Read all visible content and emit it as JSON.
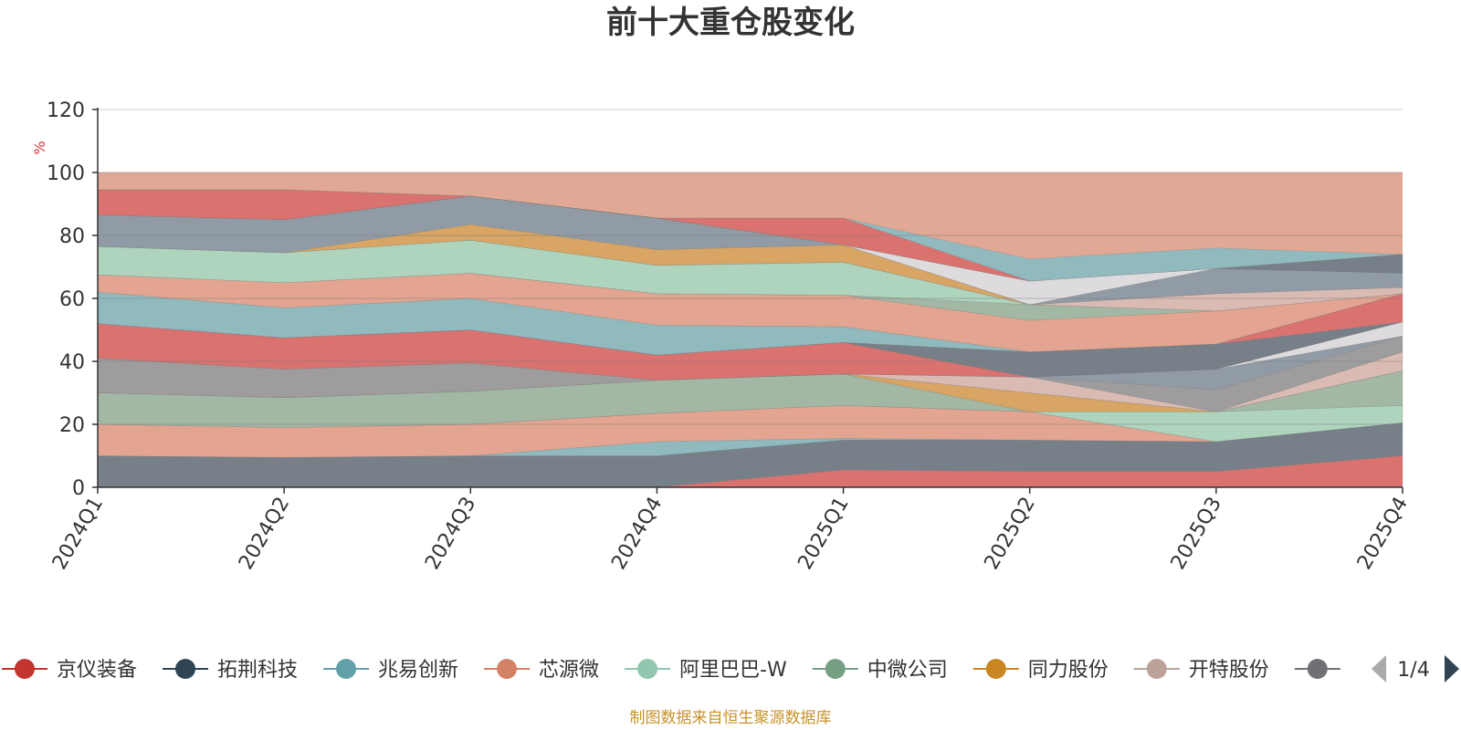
{
  "chart_data": {
    "type": "area",
    "title": "前十大重仓股变化",
    "ylabel": "%",
    "ylim": [
      0,
      120
    ],
    "y_ticks": [
      0,
      20,
      40,
      60,
      80,
      100,
      120
    ],
    "categories": [
      "2024Q1",
      "2024Q2",
      "2024Q3",
      "2024Q4",
      "2025Q1",
      "2025Q2",
      "2025Q3",
      "2025Q4"
    ],
    "background_band": {
      "from": 0,
      "to": 100,
      "color": "#e0a895"
    },
    "bands": [
      {
        "color": "#6e7c87",
        "lower": [
          0,
          0,
          0,
          0,
          5.5,
          5,
          5,
          10
        ],
        "upper": [
          10,
          9.5,
          10,
          10,
          15.5,
          15,
          14.5,
          20.5
        ]
      },
      {
        "color": "#d96e6c",
        "lower": [
          0,
          0,
          0,
          0,
          0,
          0,
          0,
          0
        ],
        "upper": [
          0,
          0,
          0,
          0,
          5.5,
          5,
          5,
          10
        ]
      },
      {
        "color": "#8abcc2",
        "lower": [
          10,
          9.5,
          10,
          10,
          15,
          15,
          14.5,
          20.5
        ],
        "upper": [
          10,
          9.5,
          10,
          14.5,
          15.5,
          15,
          14.5,
          20.5
        ]
      },
      {
        "color": "#e3a590",
        "lower": [
          10,
          9.5,
          10,
          14.5,
          15.5,
          15,
          14.5,
          20.5
        ],
        "upper": [
          20,
          19,
          20,
          23.5,
          26,
          24,
          14.5,
          20.5
        ]
      },
      {
        "color": "#a9d8c0",
        "lower": [
          20,
          19,
          20,
          23.5,
          26,
          24,
          14.5,
          20.5
        ],
        "upper": [
          20,
          19,
          20,
          23.5,
          26,
          24,
          24,
          26
        ]
      },
      {
        "color": "#9dbaa5",
        "lower": [
          20,
          19,
          20,
          23.5,
          26,
          24,
          24,
          26
        ],
        "upper": [
          30,
          28.5,
          30.5,
          34,
          36,
          24,
          24,
          37
        ]
      },
      {
        "color": "#d7a55f",
        "lower": [
          30,
          28.5,
          30.5,
          34,
          36,
          24,
          24,
          37
        ],
        "upper": [
          30,
          28.5,
          30.5,
          34,
          36,
          30,
          24,
          37
        ]
      },
      {
        "color": "#d8bdb6",
        "lower": [
          30,
          28.5,
          30.5,
          34,
          36,
          30,
          24,
          37
        ],
        "upper": [
          30,
          28.5,
          30.5,
          34,
          36,
          35,
          24,
          43
        ]
      },
      {
        "color": "#999b9e",
        "lower": [
          30,
          28.5,
          30.5,
          34,
          36,
          35,
          24,
          43
        ],
        "upper": [
          41,
          37.5,
          39.5,
          34,
          36,
          35,
          31,
          48
        ]
      },
      {
        "color": "#8a9aa6",
        "lower": [
          41,
          37.5,
          39.5,
          34,
          36,
          35,
          31,
          48
        ],
        "upper": [
          41,
          37.5,
          39.5,
          34,
          36,
          35,
          37.5,
          48
        ]
      },
      {
        "color": "#d96e6c",
        "lower": [
          41,
          37.5,
          39.5,
          34,
          36,
          35,
          37.5,
          48
        ],
        "upper": [
          52,
          47.5,
          50,
          42,
          46,
          35,
          37.5,
          48
        ]
      },
      {
        "color": "#dcdfe3",
        "lower": [
          52,
          47.5,
          50,
          42,
          46,
          35,
          37.5,
          48
        ],
        "upper": [
          52,
          47.5,
          50,
          42,
          46,
          35,
          37.5,
          52.5
        ]
      },
      {
        "color": "#6e7c87",
        "lower": [
          52,
          47.5,
          50,
          42,
          46,
          35,
          37.5,
          52.5
        ],
        "upper": [
          52,
          47.5,
          50,
          42,
          46,
          43,
          45.5,
          52.5
        ]
      },
      {
        "color": "#d96e6c",
        "lower": [
          52,
          47.5,
          50,
          42,
          46,
          43,
          45.5,
          52.5
        ],
        "upper": [
          52,
          47.5,
          50,
          42,
          46,
          43,
          45.5,
          61.5
        ]
      },
      {
        "color": "#8abcc2",
        "lower": [
          52,
          47.5,
          50,
          42,
          46,
          43,
          45.5,
          61.5
        ],
        "upper": [
          62,
          57,
          60,
          51.5,
          51,
          43,
          45.5,
          61.5
        ]
      },
      {
        "color": "#e3a590",
        "lower": [
          62,
          57,
          60,
          51.5,
          51,
          43,
          45.5,
          61.5
        ],
        "upper": [
          67.5,
          65,
          68,
          61.5,
          61,
          53,
          56,
          61.5
        ]
      },
      {
        "color": "#9dbaa5",
        "lower": [
          67.5,
          65,
          68,
          61.5,
          61,
          53,
          56,
          61.5
        ],
        "upper": [
          67.5,
          65,
          68,
          61.5,
          61,
          58,
          56,
          61.5
        ]
      },
      {
        "color": "#a9d8c0",
        "lower": [
          67.5,
          65,
          68,
          61.5,
          61,
          58,
          56,
          61.5
        ],
        "upper": [
          76.5,
          74.5,
          78.5,
          70.5,
          71.5,
          58,
          56,
          61.5
        ]
      },
      {
        "color": "#d8bdb6",
        "lower": [
          76.5,
          74.5,
          78.5,
          70.5,
          71.5,
          58,
          56,
          61.5
        ],
        "upper": [
          76.5,
          74.5,
          78.5,
          70.5,
          71.5,
          58,
          61.5,
          63.5
        ]
      },
      {
        "color": "#d7a55f",
        "lower": [
          76.5,
          74.5,
          78.5,
          70.5,
          71.5,
          58,
          61.5,
          63.5
        ],
        "upper": [
          76.5,
          74.5,
          83.5,
          75.5,
          77,
          58,
          61.5,
          63.5
        ]
      },
      {
        "color": "#8a9aa6",
        "lower": [
          76.5,
          74.5,
          83.5,
          75.5,
          77,
          58,
          61.5,
          63.5
        ],
        "upper": [
          86.5,
          85,
          92.5,
          85.5,
          77,
          58,
          69.5,
          68
        ]
      },
      {
        "color": "#dcdfe3",
        "lower": [
          86.5,
          85,
          92.5,
          85.5,
          77,
          58,
          69.5,
          68
        ],
        "upper": [
          86.5,
          85,
          92.5,
          85.5,
          77,
          65.5,
          69.5,
          68
        ]
      },
      {
        "color": "#6e7c87",
        "lower": [
          86.5,
          85,
          92.5,
          85.5,
          77,
          65.5,
          69.5,
          68
        ],
        "upper": [
          86.5,
          85,
          92.5,
          85.5,
          77,
          65.5,
          69.5,
          74
        ]
      },
      {
        "color": "#d96e6c",
        "lower": [
          86.5,
          85,
          92.5,
          85.5,
          77,
          65.5,
          69.5,
          74
        ],
        "upper": [
          94.5,
          94.5,
          92.5,
          85.5,
          85.5,
          65.5,
          69.5,
          74
        ]
      },
      {
        "color": "#8abcc2",
        "lower": [
          94.5,
          94.5,
          92.5,
          85.5,
          85.5,
          65.5,
          69.5,
          74
        ],
        "upper": [
          94.5,
          94.5,
          92.5,
          85.5,
          85.5,
          72.5,
          76,
          74
        ]
      }
    ],
    "legend": [
      {
        "name": "京仪装备",
        "color": "#c23531"
      },
      {
        "name": "拓荆科技",
        "color": "#2f4554"
      },
      {
        "name": "兆易创新",
        "color": "#61a0a8"
      },
      {
        "name": "芯源微",
        "color": "#d48265"
      },
      {
        "name": "阿里巴巴-W",
        "color": "#91c7ae"
      },
      {
        "name": "中微公司",
        "color": "#749f83"
      },
      {
        "name": "同力股份",
        "color": "#ca8622"
      },
      {
        "name": "开特股份",
        "color": "#bda29a"
      },
      {
        "name": "",
        "color": "#6e7074"
      }
    ],
    "legend_page": "1/4",
    "grid": true,
    "legend_position": "bottom"
  },
  "source_note": "制图数据来自恒生聚源数据库"
}
